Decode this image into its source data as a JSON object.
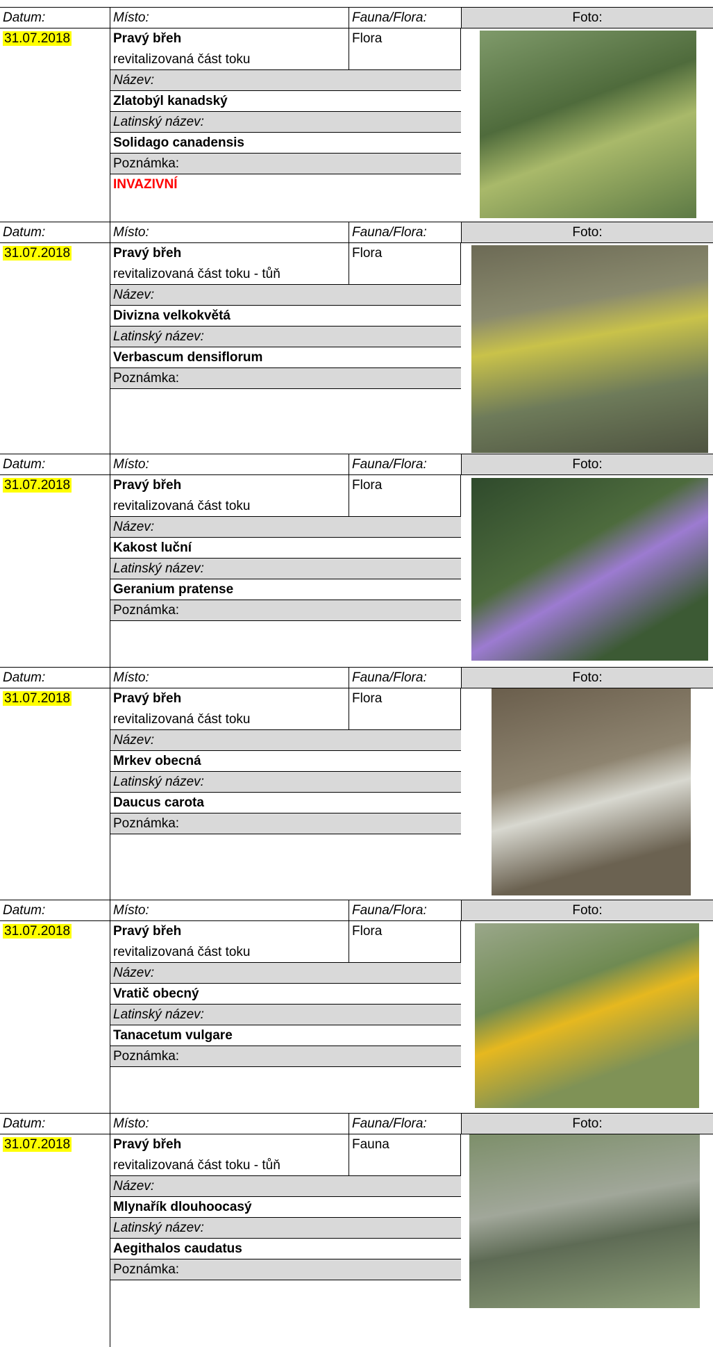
{
  "records": [
    {
      "datum_label": "Datum:",
      "misto_label": "Místo:",
      "fauna_label": "Fauna/Flora:",
      "foto_label": "Foto:",
      "date": "31.07.2018",
      "place": "Pravý břeh",
      "place_detail": "revitalizovaná část toku",
      "type": "Flora",
      "name_label": "Název:",
      "name": "Zlatobýl kanadský",
      "latin_label": "Latinský název:",
      "latin": "Solidago canadensis",
      "note_label": "Poznámka:",
      "note": "INVAZIVNÍ"
    },
    {
      "datum_label": "Datum:",
      "misto_label": "Místo:",
      "fauna_label": "Fauna/Flora:",
      "foto_label": "Foto:",
      "date": "31.07.2018",
      "place": "Pravý břeh",
      "place_detail": "revitalizovaná část toku - tůň",
      "type": "Flora",
      "name_label": "Název:",
      "name": "Divizna velkokvětá",
      "latin_label": "Latinský název:",
      "latin": "Verbascum densiflorum",
      "note_label": "Poznámka:"
    },
    {
      "datum_label": "Datum:",
      "misto_label": "Místo:",
      "fauna_label": "Fauna/Flora:",
      "foto_label": "Foto:",
      "date": "31.07.2018",
      "place": "Pravý břeh",
      "place_detail": "revitalizovaná část toku",
      "type": "Flora",
      "name_label": "Název:",
      "name": "Kakost luční",
      "latin_label": "Latinský název:",
      "latin": "Geranium pratense",
      "note_label": "Poznámka:"
    },
    {
      "datum_label": "Datum:",
      "misto_label": "Místo:",
      "fauna_label": "Fauna/Flora:",
      "foto_label": "Foto:",
      "date": "31.07.2018",
      "place": "Pravý břeh",
      "place_detail": "revitalizovaná část toku",
      "type": "Flora",
      "name_label": "Název:",
      "name": "Mrkev obecná",
      "latin_label": "Latinský název:",
      "latin": "Daucus carota",
      "note_label": "Poznámka:"
    },
    {
      "datum_label": "Datum:",
      "misto_label": "Místo:",
      "fauna_label": "Fauna/Flora:",
      "foto_label": "Foto:",
      "date": "31.07.2018",
      "place": "Pravý břeh",
      "place_detail": "revitalizovaná část toku",
      "type": "Flora",
      "name_label": "Název:",
      "name": "Vratič obecný",
      "latin_label": "Latinský název:",
      "latin": "Tanacetum vulgare",
      "note_label": "Poznámka:"
    },
    {
      "datum_label": "Datum:",
      "misto_label": "Místo:",
      "fauna_label": "Fauna/Flora:",
      "foto_label": "Foto:",
      "date": "31.07.2018",
      "place": "Pravý břeh",
      "place_detail": "revitalizovaná část toku - tůň",
      "type": "Fauna",
      "name_label": "Název:",
      "name": "Mlynařík dlouhoocasý",
      "latin_label": "Latinský název:",
      "latin": "Aegithalos caudatus",
      "note_label": "Poznámka:"
    }
  ]
}
